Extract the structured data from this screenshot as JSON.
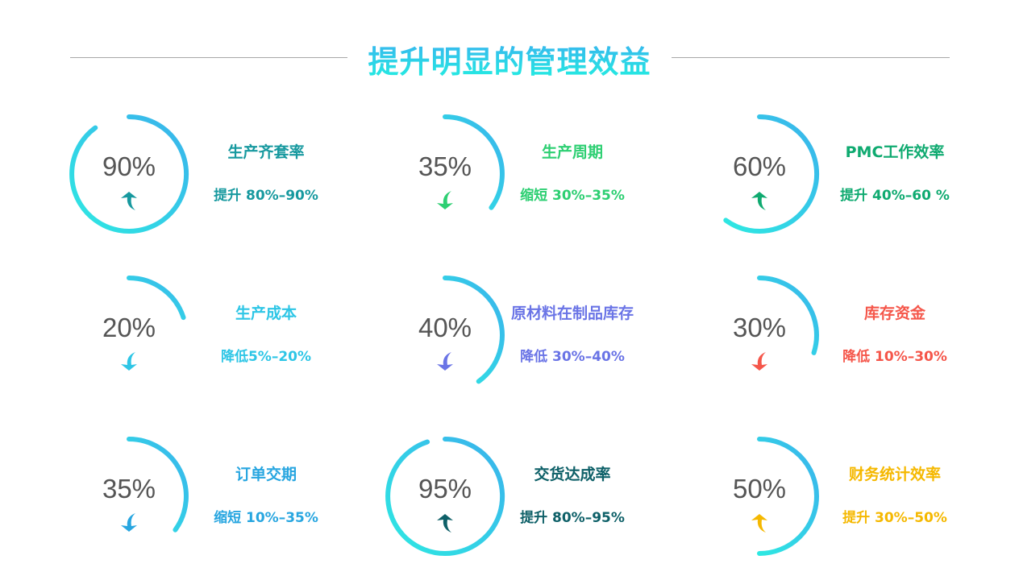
{
  "title": "提升明显的管理效益",
  "ring_gradient": {
    "start": "#3ab2ec",
    "end": "#2ee8e2"
  },
  "items": [
    {
      "value": "90%",
      "percent": 90,
      "label": "生产齐套率",
      "desc": "提升 80%–90%",
      "direction": "up",
      "icon": "arrow-up-icon",
      "color": "#17999f"
    },
    {
      "value": "35%",
      "percent": 35,
      "label": "生产周期",
      "desc": "缩短 30%–35%",
      "direction": "down",
      "icon": "arrow-down-icon",
      "color": "#2dcf72"
    },
    {
      "value": "60%",
      "percent": 60,
      "label": "PMC工作效率",
      "desc": "提升 40%–60 %",
      "direction": "up",
      "icon": "arrow-up-icon",
      "color": "#0faa70"
    },
    {
      "value": "20%",
      "percent": 20,
      "label": "生产成本",
      "desc": "降低5%–20%",
      "direction": "down",
      "icon": "arrow-down-icon",
      "color": "#2ec6e6"
    },
    {
      "value": "40%",
      "percent": 40,
      "label": "原材料在制品库存",
      "desc": "降低 30%–40%",
      "direction": "down",
      "icon": "arrow-down-icon",
      "color": "#6a74e6"
    },
    {
      "value": "30%",
      "percent": 30,
      "label": "库存资金",
      "desc": "降低 10%–30%",
      "direction": "down",
      "icon": "arrow-down-icon",
      "color": "#f5564a"
    },
    {
      "value": "35%",
      "percent": 35,
      "label": "订单交期",
      "desc": "缩短 10%–35%",
      "direction": "down",
      "icon": "arrow-down-icon",
      "color": "#28a6e0"
    },
    {
      "value": "95%",
      "percent": 95,
      "label": "交货达成率",
      "desc": "提升 80%–95%",
      "direction": "up",
      "icon": "arrow-up-icon",
      "color": "#0e6068"
    },
    {
      "value": "50%",
      "percent": 50,
      "label": "财务统计效率",
      "desc": "提升 30%–50%",
      "direction": "up",
      "icon": "arrow-up-icon",
      "color": "#f5b800"
    }
  ]
}
